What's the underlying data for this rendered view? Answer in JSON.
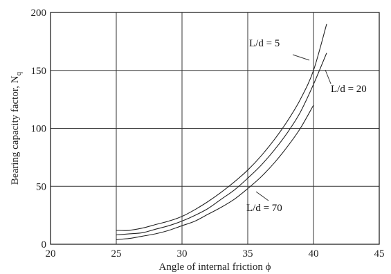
{
  "chart_data": {
    "type": "line",
    "xlabel": "Angle of internal friction ϕ",
    "ylabel": "Bearing capacity factor, N",
    "ylabel_subscript": "q",
    "xlim": [
      20,
      45
    ],
    "ylim": [
      0,
      200
    ],
    "xticks": [
      20,
      25,
      30,
      35,
      40,
      45
    ],
    "yticks": [
      0,
      50,
      100,
      150,
      200
    ],
    "grid": true,
    "series": [
      {
        "name": "L/d = 5",
        "x": [
          25,
          26,
          27,
          28,
          29,
          30,
          31,
          32,
          33,
          34,
          35,
          36,
          37,
          38,
          39,
          40,
          41
        ],
        "y": [
          12,
          12,
          14,
          17,
          20,
          24,
          30,
          37,
          45,
          54,
          64,
          76,
          90,
          106,
          125,
          150,
          190
        ]
      },
      {
        "name": "L/d = 20",
        "x": [
          25,
          26,
          27,
          28,
          29,
          30,
          31,
          32,
          33,
          34,
          35,
          36,
          37,
          38,
          39,
          40,
          41
        ],
        "y": [
          8,
          9,
          10,
          13,
          16,
          20,
          25,
          31,
          39,
          47,
          57,
          68,
          81,
          96,
          114,
          138,
          165
        ]
      },
      {
        "name": "L/d = 70",
        "x": [
          25,
          26,
          27,
          28,
          29,
          30,
          31,
          32,
          33,
          34,
          35,
          36,
          37,
          38,
          39,
          40
        ],
        "y": [
          4,
          5,
          7,
          9,
          12,
          16,
          20,
          26,
          32,
          39,
          48,
          58,
          70,
          84,
          100,
          120
        ]
      }
    ],
    "annotations": [
      "L/d = 5",
      "L/d = 20",
      "L/d = 70"
    ]
  }
}
